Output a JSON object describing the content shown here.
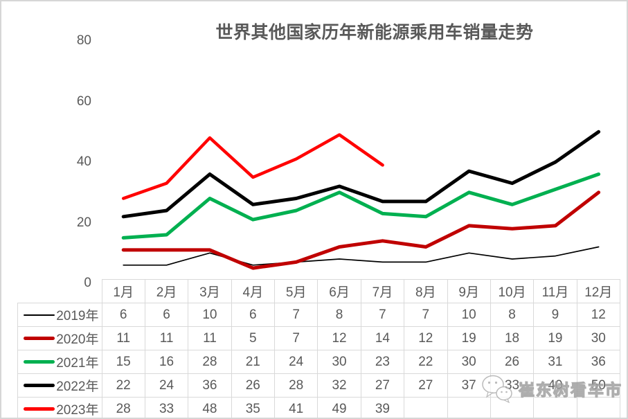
{
  "title": "世界其他国家历年新能源乘用车销量走势",
  "watermark": {
    "text": "崔东树看车市",
    "icon": "wechat-icon"
  },
  "colors": {
    "title_text": "#595959",
    "table_text": "#595959",
    "table_grid": "#d9d9d9",
    "frame": "#d6d6d6",
    "series_2019": "#000000",
    "series_2020": "#c00000",
    "series_2021": "#00b050",
    "series_2022": "#000000",
    "series_2023": "#ff0000"
  },
  "chart_data": {
    "type": "line",
    "title": "世界其他国家历年新能源乘用车销量走势",
    "categories": [
      "1月",
      "2月",
      "3月",
      "4月",
      "5月",
      "6月",
      "7月",
      "8月",
      "9月",
      "10月",
      "11月",
      "12月"
    ],
    "series": [
      {
        "name": "2019年",
        "color": "#000000",
        "line_weight": 1.7,
        "values": [
          6,
          6,
          10,
          6,
          7,
          8,
          7,
          7,
          10,
          8,
          9,
          12
        ]
      },
      {
        "name": "2020年",
        "color": "#c00000",
        "line_weight": 5,
        "values": [
          11,
          11,
          11,
          5,
          7,
          12,
          14,
          12,
          19,
          18,
          19,
          30
        ]
      },
      {
        "name": "2021年",
        "color": "#00b050",
        "line_weight": 5,
        "values": [
          15,
          16,
          28,
          21,
          24,
          30,
          23,
          22,
          30,
          26,
          31,
          36
        ]
      },
      {
        "name": "2022年",
        "color": "#000000",
        "line_weight": 5,
        "values": [
          22,
          24,
          36,
          26,
          28,
          32,
          27,
          27,
          37,
          33,
          40,
          50
        ]
      },
      {
        "name": "2023年",
        "color": "#ff0000",
        "line_weight": 4.5,
        "values": [
          28,
          33,
          48,
          35,
          41,
          49,
          39,
          null,
          null,
          null,
          null,
          null
        ]
      }
    ],
    "y_ticks": [
      0,
      20,
      40,
      60,
      80
    ],
    "ylim": [
      0,
      80
    ],
    "grid": false,
    "legend_position": "table-left",
    "xlabel": "",
    "ylabel": ""
  }
}
